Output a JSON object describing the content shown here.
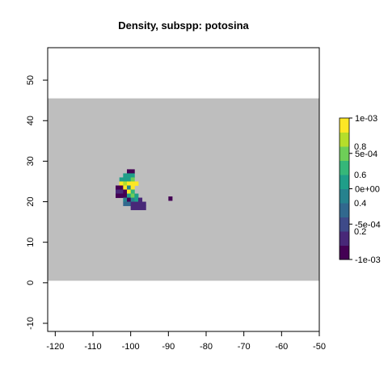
{
  "chart_data": {
    "type": "heatmap",
    "title": "Density, subspp: potosina",
    "xlim": [
      -122,
      -50
    ],
    "ylim": [
      -12,
      58
    ],
    "x_ticks": [
      -120,
      -110,
      -100,
      -90,
      -80,
      -70,
      -60,
      -50
    ],
    "y_ticks": [
      -10,
      0,
      10,
      20,
      30,
      40,
      50
    ],
    "x_tick_labels": [
      "-120",
      "-110",
      "-100",
      "-90",
      "-80",
      "-70",
      "-60",
      "-50"
    ],
    "y_tick_labels": [
      "-10",
      "0",
      "10",
      "20",
      "30",
      "40",
      "50"
    ],
    "background_region": {
      "x": [
        -122,
        -50
      ],
      "y": [
        0.5,
        45.5
      ],
      "color": "#bebebe"
    },
    "cell_size": 1,
    "cells": [
      {
        "x": -101,
        "y": 27,
        "v": 0.05
      },
      {
        "x": -100,
        "y": 27,
        "v": 0.05
      },
      {
        "x": -102,
        "y": 26,
        "v": 0.55
      },
      {
        "x": -101,
        "y": 26,
        "v": 0.6
      },
      {
        "x": -100,
        "y": 26,
        "v": 0.5
      },
      {
        "x": -103,
        "y": 25,
        "v": 0.5
      },
      {
        "x": -102,
        "y": 25,
        "v": 0.55
      },
      {
        "x": -101,
        "y": 25,
        "v": 0.6
      },
      {
        "x": -100,
        "y": 25,
        "v": 0.75
      },
      {
        "x": -103,
        "y": 24,
        "v": 0.95
      },
      {
        "x": -102,
        "y": 24,
        "v": 0.9
      },
      {
        "x": -101,
        "y": 24,
        "v": 0.95
      },
      {
        "x": -100,
        "y": 24,
        "v": 0.95
      },
      {
        "x": -99,
        "y": 24,
        "v": 0.95
      },
      {
        "x": -104,
        "y": 23,
        "v": 0.05
      },
      {
        "x": -103,
        "y": 23,
        "v": 0.05
      },
      {
        "x": -102,
        "y": 23,
        "v": 0.95
      },
      {
        "x": -101,
        "y": 23,
        "v": 0.45
      },
      {
        "x": -100,
        "y": 23,
        "v": 0.95
      },
      {
        "x": -104,
        "y": 22,
        "v": 0.1
      },
      {
        "x": -103,
        "y": 22,
        "v": 0.1
      },
      {
        "x": -102,
        "y": 22,
        "v": 0.05
      },
      {
        "x": -101,
        "y": 22,
        "v": 0.95
      },
      {
        "x": -100,
        "y": 22,
        "v": 0.65
      },
      {
        "x": -104,
        "y": 21,
        "v": 0.05
      },
      {
        "x": -103,
        "y": 21,
        "v": 0.05
      },
      {
        "x": -102,
        "y": 21,
        "v": 0.05
      },
      {
        "x": -101,
        "y": 21,
        "v": 0.5
      },
      {
        "x": -100,
        "y": 21,
        "v": 0.8
      },
      {
        "x": -99,
        "y": 21,
        "v": 0.6
      },
      {
        "x": -102,
        "y": 20,
        "v": 0.4
      },
      {
        "x": -101,
        "y": 20,
        "v": 0.05
      },
      {
        "x": -100,
        "y": 20,
        "v": 0.45
      },
      {
        "x": -99,
        "y": 20,
        "v": 0.6
      },
      {
        "x": -98,
        "y": 20,
        "v": 0.15
      },
      {
        "x": -102,
        "y": 19,
        "v": 0.3
      },
      {
        "x": -101,
        "y": 19,
        "v": 0.3
      },
      {
        "x": -100,
        "y": 19,
        "v": 0.15
      },
      {
        "x": -99,
        "y": 19,
        "v": 0.15
      },
      {
        "x": -98,
        "y": 19,
        "v": 0.15
      },
      {
        "x": -97,
        "y": 19,
        "v": 0.15
      },
      {
        "x": -100,
        "y": 18,
        "v": 0.15
      },
      {
        "x": -99,
        "y": 18,
        "v": 0.15
      },
      {
        "x": -98,
        "y": 18,
        "v": 0.15
      },
      {
        "x": -97,
        "y": 18,
        "v": 0.15
      },
      {
        "x": -90,
        "y": 20.3,
        "v": 0.0
      }
    ],
    "colorbar": {
      "colors": [
        "#440154",
        "#482878",
        "#3e4a89",
        "#31688e",
        "#26828e",
        "#1f9e89",
        "#35b779",
        "#6ece58",
        "#b5de2b",
        "#fde725"
      ],
      "labels_left": [
        "1e-03",
        "5e-04",
        "0e+00",
        "-5e-04",
        "-1e-03"
      ],
      "labels_left_values": [
        1,
        0.75,
        0.5,
        0.25,
        0
      ],
      "labels_right": [
        "0.8",
        "0.6",
        "0.4",
        "0.2"
      ],
      "labels_right_values": [
        0.8,
        0.6,
        0.4,
        0.2
      ]
    }
  }
}
